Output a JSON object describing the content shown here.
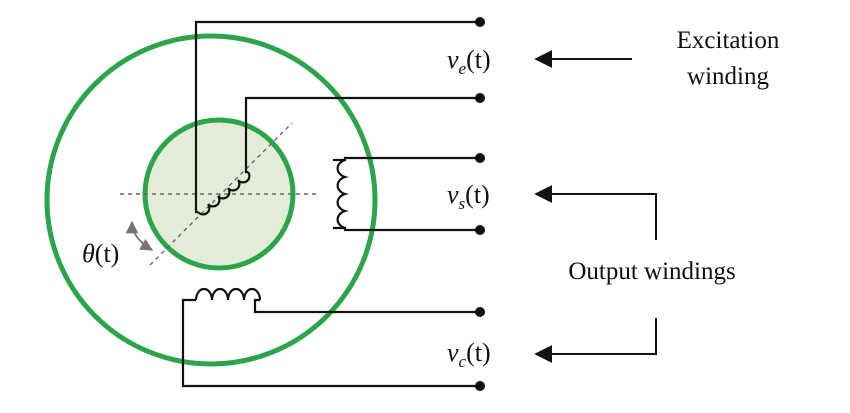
{
  "labels": {
    "excitation_line1": "Excitation",
    "excitation_line2": "winding",
    "output": "Output windings"
  },
  "signals": {
    "ve": {
      "sym": "v",
      "sub": "e",
      "arg": "(t)"
    },
    "vs": {
      "sym": "v",
      "sub": "s",
      "arg": "(t)"
    },
    "vc": {
      "sym": "v",
      "sub": "c",
      "arg": "(t)"
    },
    "theta": {
      "sym": "θ",
      "arg": "(t)"
    }
  },
  "colors": {
    "stator": "#2aa64a",
    "rotor_fill": "#e4ecd8",
    "wire": "#111111"
  }
}
